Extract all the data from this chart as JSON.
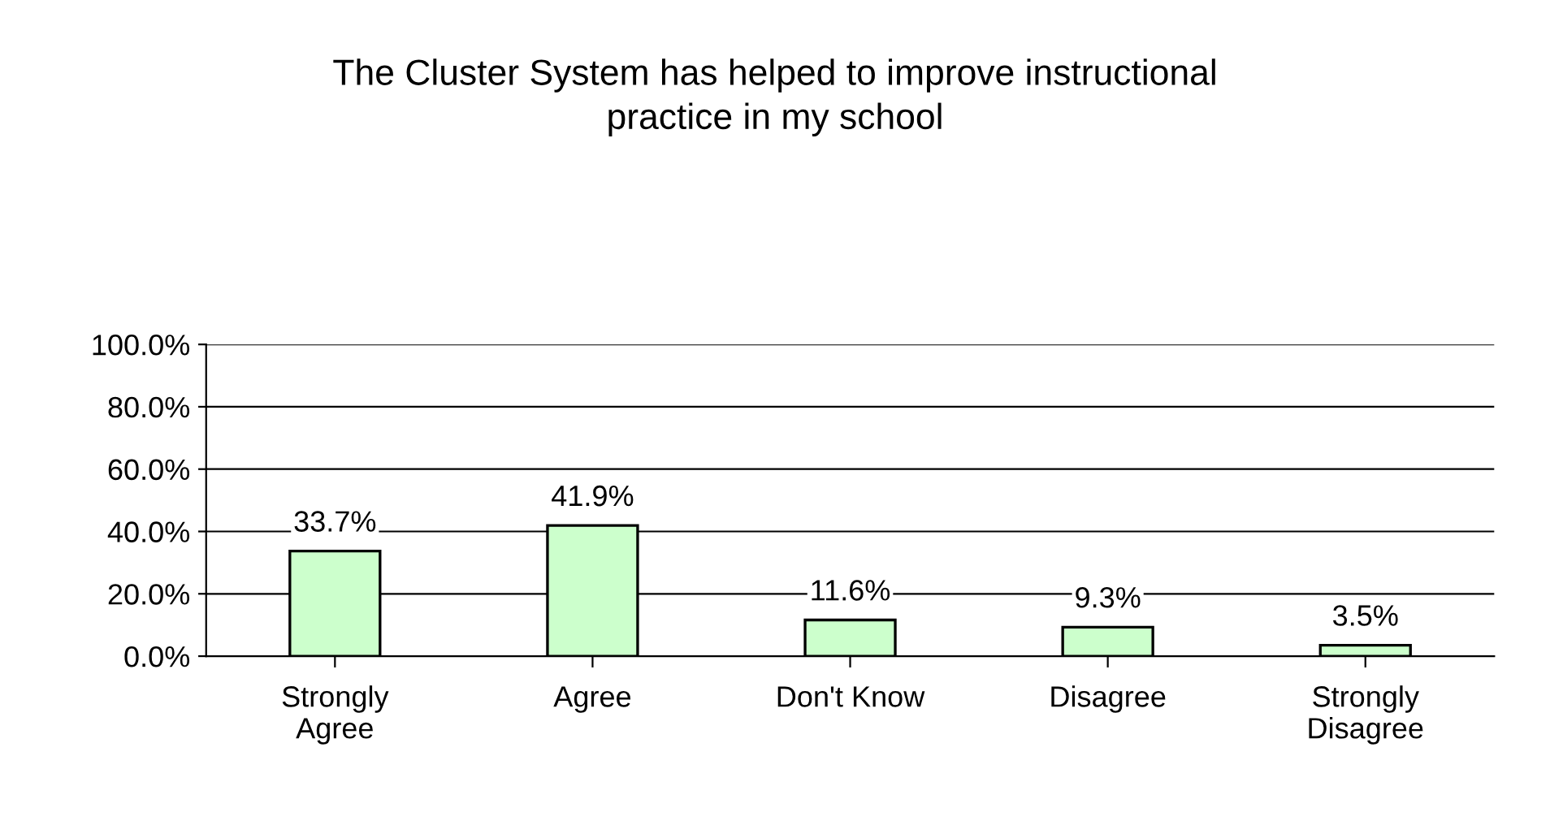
{
  "chart_data": {
    "type": "bar",
    "title": "The Cluster System has helped to improve instructional\npractice in my school",
    "categories": [
      "Strongly\nAgree",
      "Agree",
      "Don't Know",
      "Disagree",
      "Strongly\nDisagree"
    ],
    "values": [
      33.7,
      41.9,
      11.6,
      9.3,
      3.5
    ],
    "color": "#ccffcc",
    "ylim": [
      0,
      100
    ],
    "yticks": [
      {
        "value": 0,
        "label": "0.0%"
      },
      {
        "value": 20,
        "label": "20.0%"
      },
      {
        "value": 40,
        "label": "40.0%"
      },
      {
        "value": 60,
        "label": "60.0%"
      },
      {
        "value": 80,
        "label": "80.0%"
      },
      {
        "value": 100,
        "label": "100.0%"
      }
    ],
    "value_labels": [
      "33.7%",
      "41.9%",
      "11.6%",
      "9.3%",
      "3.5%"
    ],
    "grid": "y",
    "legend": false
  }
}
